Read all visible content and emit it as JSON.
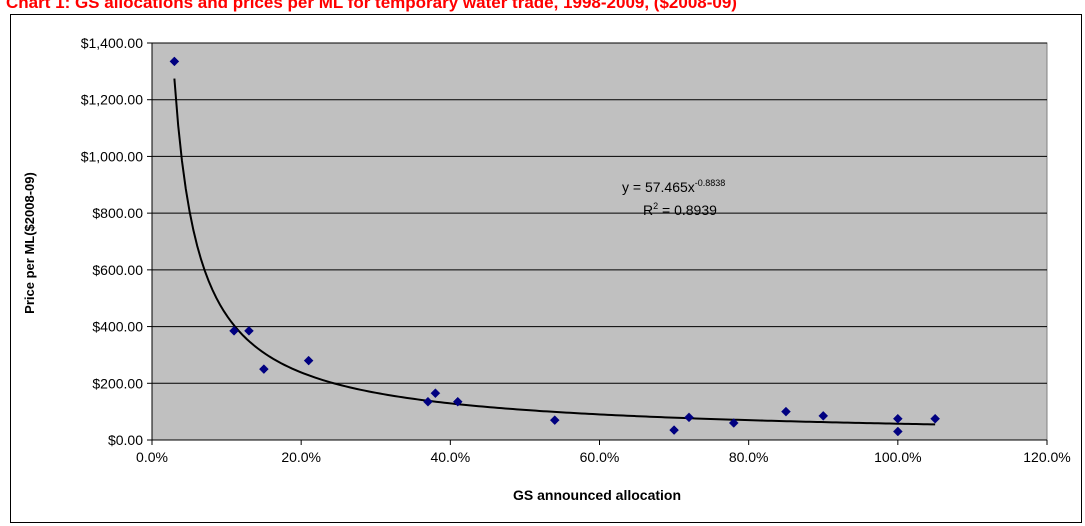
{
  "chart_data": {
    "type": "scatter",
    "title": "Chart 1: GS allocations and prices per ML for temporary water trade, 1998-2009, ($2008-09)",
    "xlabel": "GS announced allocation",
    "ylabel": "Price per ML($2008-09)",
    "xlim": [
      0,
      1.2
    ],
    "ylim": [
      0,
      1400
    ],
    "x_ticks": [
      0,
      0.2,
      0.4,
      0.6,
      0.8,
      1.0,
      1.2
    ],
    "x_tick_labels": [
      "0.0%",
      "20.0%",
      "40.0%",
      "60.0%",
      "80.0%",
      "100.0%",
      "120.0%"
    ],
    "y_ticks": [
      0,
      200,
      400,
      600,
      800,
      1000,
      1200,
      1400
    ],
    "y_tick_labels": [
      "$0.00",
      "$200.00",
      "$400.00",
      "$600.00",
      "$800.00",
      "$1,000.00",
      "$1,200.00",
      "$1,400.00"
    ],
    "grid": true,
    "points": [
      {
        "x": 0.03,
        "y": 1335
      },
      {
        "x": 0.11,
        "y": 385
      },
      {
        "x": 0.13,
        "y": 385
      },
      {
        "x": 0.15,
        "y": 250
      },
      {
        "x": 0.21,
        "y": 280
      },
      {
        "x": 0.37,
        "y": 135
      },
      {
        "x": 0.38,
        "y": 165
      },
      {
        "x": 0.41,
        "y": 135
      },
      {
        "x": 0.54,
        "y": 70
      },
      {
        "x": 0.7,
        "y": 35
      },
      {
        "x": 0.72,
        "y": 80
      },
      {
        "x": 0.78,
        "y": 60
      },
      {
        "x": 0.85,
        "y": 100
      },
      {
        "x": 0.9,
        "y": 85
      },
      {
        "x": 1.0,
        "y": 75
      },
      {
        "x": 1.0,
        "y": 30
      },
      {
        "x": 1.05,
        "y": 75
      }
    ],
    "trendline": {
      "type": "power",
      "coefficient": 57.465,
      "exponent": -0.8838,
      "x_range": [
        0.03,
        1.05
      ],
      "equation_label": "y = 57.465x",
      "equation_exponent": "-0.8838",
      "r2_label": "R",
      "r2_sup": "2",
      "r2_value": " = 0.8939"
    },
    "colors": {
      "plot_background": "#c0c0c0",
      "marker": "#000080",
      "trendline": "#000000",
      "title": "#ff0000"
    }
  }
}
